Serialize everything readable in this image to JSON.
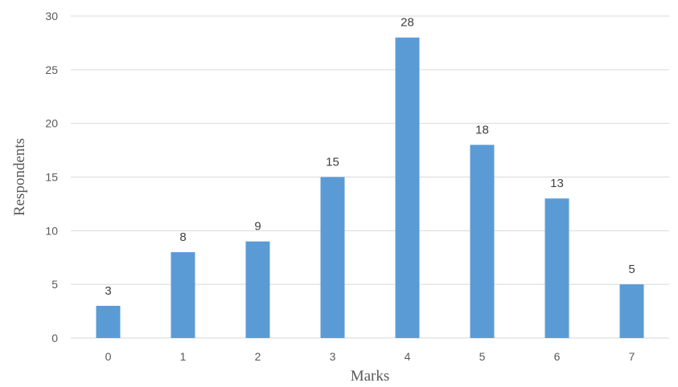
{
  "chart_data": {
    "type": "bar",
    "categories": [
      "0",
      "1",
      "2",
      "3",
      "4",
      "5",
      "6",
      "7"
    ],
    "values": [
      3,
      8,
      9,
      15,
      28,
      18,
      13,
      5
    ],
    "xlabel": "Marks",
    "ylabel": "Respondents",
    "ylim": [
      0,
      30
    ],
    "yticks": [
      0,
      5,
      10,
      15,
      20,
      25,
      30
    ],
    "grid": true,
    "legend": "none",
    "bar_color": "#5b9bd5",
    "data_labels": true
  }
}
